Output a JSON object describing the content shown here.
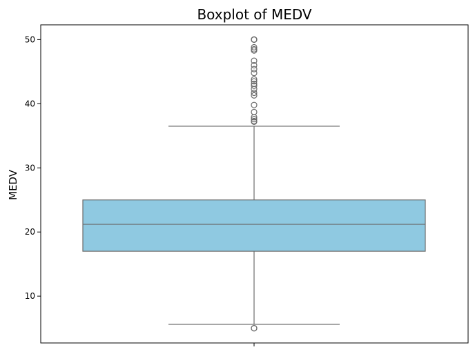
{
  "chart_data": {
    "type": "boxplot",
    "title": "Boxplot of MEDV",
    "xlabel": "",
    "ylabel": "MEDV",
    "ylim": [
      2.7,
      52.3
    ],
    "yticks": [
      10,
      20,
      30,
      40,
      50
    ],
    "grid": false,
    "legend": "none",
    "box_color": "#8fc9e1",
    "line_color": "#6a6a6a",
    "stats": {
      "q1": 17.0,
      "median": 21.2,
      "q3": 25.0,
      "whisker_low": 5.6,
      "whisker_high": 36.5
    },
    "outliers": [
      5.0,
      5.0,
      37.2,
      37.3,
      37.6,
      37.9,
      38.7,
      39.8,
      41.3,
      41.7,
      42.3,
      42.8,
      43.1,
      43.5,
      43.8,
      44.8,
      45.4,
      46.0,
      46.7,
      48.3,
      48.5,
      48.8,
      50.0,
      50.0,
      50.0,
      50.0
    ]
  }
}
